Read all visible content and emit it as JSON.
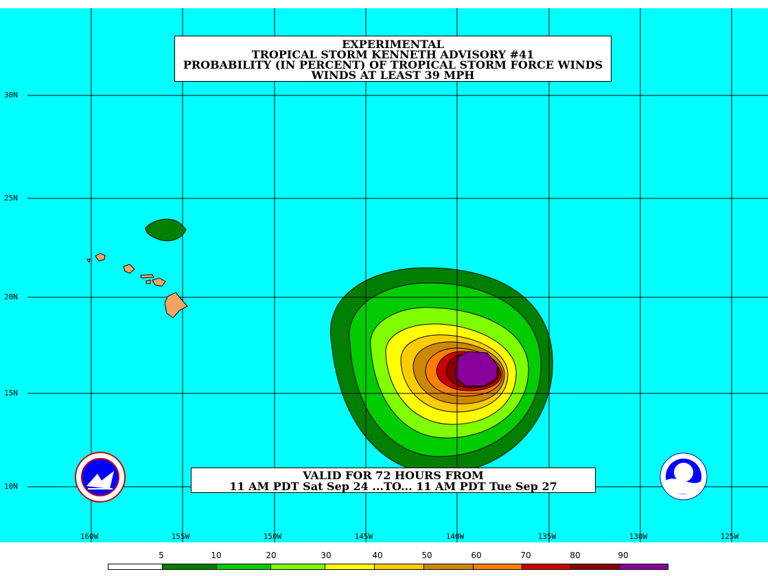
{
  "title": {
    "line1": "EXPERIMENTAL",
    "line2": "TROPICAL STORM KENNETH ADVISORY #41",
    "line3": "PROBABILITY (IN PERCENT) OF TROPICAL STORM FORCE WINDS",
    "line4": "WINDS AT LEAST 39 MPH"
  },
  "valid": {
    "line1": "VALID FOR 72 HOURS FROM",
    "line2": "11 AM PDT Sat Sep 24 ...TO... 11 AM PDT Tue Sep 27"
  },
  "latitude_labels": [
    "30N",
    "25N",
    "20N",
    "15N",
    "10N"
  ],
  "longitude_labels": [
    "160W",
    "155W",
    "150W",
    "145W",
    "140W",
    "135W",
    "130W",
    "125W"
  ],
  "legend": {
    "labels": [
      "5",
      "10",
      "20",
      "30",
      "40",
      "50",
      "60",
      "70",
      "80",
      "90"
    ],
    "colors": [
      "#ffffff",
      "#007f00",
      "#00cc00",
      "#7fff00",
      "#ffff00",
      "#ffcc00",
      "#cc8800",
      "#ff7f00",
      "#cc0000",
      "#880000",
      "#880099"
    ]
  },
  "colors": {
    "ocean": "#00ffff",
    "land": "#f4a460",
    "grid": "#000000"
  },
  "logos": {
    "nws": "NATIONAL WEATHER SERVICE",
    "noaa": "NOAA"
  }
}
